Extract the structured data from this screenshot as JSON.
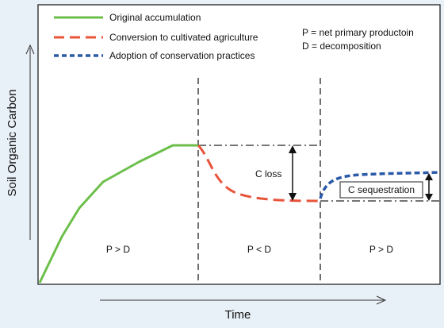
{
  "legend": {
    "items": [
      {
        "label": "Original accumulation",
        "color": "#6cbf4a",
        "style": "solid"
      },
      {
        "label": "Conversion to cultivated agriculture",
        "color": "#e8533a",
        "style": "dashed"
      },
      {
        "label": "Adoption of conservation practices",
        "color": "#2a5aa8",
        "style": "dotted"
      }
    ],
    "definitions": [
      "P = net primary productoin",
      "D = decomposition"
    ]
  },
  "axes": {
    "ylabel": "Soil Organic Carbon",
    "xlabel": "Time"
  },
  "annotations": {
    "c_loss": "C loss",
    "c_sequestration": "C sequestration"
  },
  "phases": [
    {
      "label": "P > D"
    },
    {
      "label": "P < D"
    },
    {
      "label": "P > D"
    }
  ],
  "colors": {
    "background": "#e9f1f8",
    "plot_background": "#ffffff",
    "accumulation": "#6cbf4a",
    "cultivation": "#e8533a",
    "conservation": "#2a5aa8"
  }
}
